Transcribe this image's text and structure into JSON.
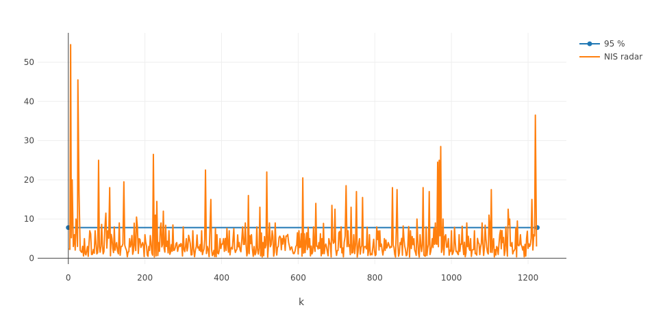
{
  "chart_data": {
    "type": "line",
    "title": "",
    "xlabel": "k",
    "ylabel": "",
    "xlim": [
      -80,
      1300
    ],
    "ylim": [
      -1.5,
      57.5
    ],
    "xticks": [
      0,
      200,
      400,
      600,
      800,
      1000,
      1200
    ],
    "yticks": [
      0,
      10,
      20,
      30,
      40,
      50
    ],
    "grid": true,
    "legend_position": "top-right",
    "series": [
      {
        "name": "95 %",
        "color": "#1f77b4",
        "mode": "lines+markers",
        "x": [
          0,
          1224
        ],
        "y": [
          7.815,
          7.815
        ]
      },
      {
        "name": "NIS radar",
        "color": "#ff7f0e",
        "mode": "lines",
        "spikes": [
          [
            2,
            2.5
          ],
          [
            6,
            54.5
          ],
          [
            10,
            20
          ],
          [
            13,
            3
          ],
          [
            16,
            6
          ],
          [
            20,
            10
          ],
          [
            24,
            3
          ],
          [
            25,
            45.5
          ],
          [
            28,
            16.5
          ],
          [
            31,
            2
          ],
          [
            35,
            1.5
          ],
          [
            42,
            5
          ],
          [
            50,
            3
          ],
          [
            56,
            7
          ],
          [
            63,
            1
          ],
          [
            70,
            7
          ],
          [
            79,
            25
          ],
          [
            85,
            3
          ],
          [
            95,
            7
          ],
          [
            98,
            11.5
          ],
          [
            103,
            7
          ],
          [
            108,
            18
          ],
          [
            114,
            5
          ],
          [
            120,
            8
          ],
          [
            126,
            4
          ],
          [
            133,
            9
          ],
          [
            140,
            3
          ],
          [
            145,
            19.5
          ],
          [
            152,
            2
          ],
          [
            160,
            5
          ],
          [
            168,
            1
          ],
          [
            178,
            10.5
          ],
          [
            185,
            5
          ],
          [
            194,
            4
          ],
          [
            200,
            6
          ],
          [
            210,
            3
          ],
          [
            216,
            4
          ],
          [
            222,
            26.5
          ],
          [
            227,
            11
          ],
          [
            231,
            14.5
          ],
          [
            236,
            4
          ],
          [
            242,
            9
          ],
          [
            248,
            12
          ],
          [
            256,
            3
          ],
          [
            265,
            1
          ],
          [
            275,
            2
          ],
          [
            283,
            4
          ],
          [
            292,
            3
          ],
          [
            300,
            8
          ],
          [
            308,
            5
          ],
          [
            316,
            5
          ],
          [
            325,
            7
          ],
          [
            334,
            3
          ],
          [
            342,
            2
          ],
          [
            348,
            7
          ],
          [
            358,
            22.5
          ],
          [
            363,
            3
          ],
          [
            372,
            15
          ],
          [
            380,
            2
          ],
          [
            388,
            6
          ],
          [
            396,
            5
          ],
          [
            405,
            5
          ],
          [
            412,
            2
          ],
          [
            420,
            7
          ],
          [
            430,
            5
          ],
          [
            438,
            2
          ],
          [
            446,
            4
          ],
          [
            455,
            8
          ],
          [
            462,
            9
          ],
          [
            470,
            16
          ],
          [
            478,
            6
          ],
          [
            485,
            3
          ],
          [
            492,
            8
          ],
          [
            500,
            13
          ],
          [
            508,
            4
          ],
          [
            518,
            22
          ],
          [
            525,
            9
          ],
          [
            532,
            7
          ],
          [
            540,
            9
          ],
          [
            548,
            3
          ],
          [
            558,
            5
          ],
          [
            566,
            2
          ],
          [
            575,
            4
          ],
          [
            585,
            2
          ],
          [
            594,
            3
          ],
          [
            602,
            7
          ],
          [
            612,
            20.5
          ],
          [
            620,
            4
          ],
          [
            630,
            5
          ],
          [
            640,
            8
          ],
          [
            646,
            14
          ],
          [
            654,
            4
          ],
          [
            662,
            5
          ],
          [
            670,
            3
          ],
          [
            680,
            5
          ],
          [
            688,
            13.5
          ],
          [
            696,
            12.5
          ],
          [
            704,
            2
          ],
          [
            712,
            8
          ],
          [
            720,
            4
          ],
          [
            725,
            18.5
          ],
          [
            730,
            7
          ],
          [
            738,
            13
          ],
          [
            745,
            6
          ],
          [
            752,
            17
          ],
          [
            760,
            5
          ],
          [
            768,
            15.5
          ],
          [
            776,
            3
          ],
          [
            786,
            6
          ],
          [
            795,
            3
          ],
          [
            805,
            8
          ],
          [
            815,
            3
          ],
          [
            825,
            5
          ],
          [
            835,
            4
          ],
          [
            846,
            18
          ],
          [
            852,
            1
          ],
          [
            858,
            17.5
          ],
          [
            866,
            4
          ],
          [
            876,
            5
          ],
          [
            886,
            3
          ],
          [
            893,
            7
          ],
          [
            902,
            5
          ],
          [
            910,
            10
          ],
          [
            918,
            6
          ],
          [
            926,
            18
          ],
          [
            934,
            8
          ],
          [
            942,
            17
          ],
          [
            950,
            5
          ],
          [
            958,
            9
          ],
          [
            964,
            24.5
          ],
          [
            968,
            25
          ],
          [
            972,
            28.5
          ],
          [
            978,
            10
          ],
          [
            985,
            6
          ],
          [
            992,
            5
          ],
          [
            1000,
            7
          ],
          [
            1010,
            4
          ],
          [
            1020,
            6
          ],
          [
            1030,
            3
          ],
          [
            1040,
            9
          ],
          [
            1050,
            5
          ],
          [
            1060,
            7
          ],
          [
            1070,
            4
          ],
          [
            1080,
            9
          ],
          [
            1090,
            5
          ],
          [
            1098,
            11
          ],
          [
            1104,
            17.5
          ],
          [
            1110,
            5
          ],
          [
            1118,
            3
          ],
          [
            1126,
            6
          ],
          [
            1134,
            4
          ],
          [
            1142,
            8
          ],
          [
            1148,
            12.5
          ],
          [
            1152,
            10
          ],
          [
            1158,
            4
          ],
          [
            1164,
            2
          ],
          [
            1172,
            9.5
          ],
          [
            1180,
            6
          ],
          [
            1188,
            3
          ],
          [
            1196,
            5
          ],
          [
            1204,
            3
          ],
          [
            1210,
            15
          ],
          [
            1215,
            6
          ],
          [
            1219,
            36.5
          ],
          [
            1222,
            3
          ]
        ]
      }
    ]
  }
}
